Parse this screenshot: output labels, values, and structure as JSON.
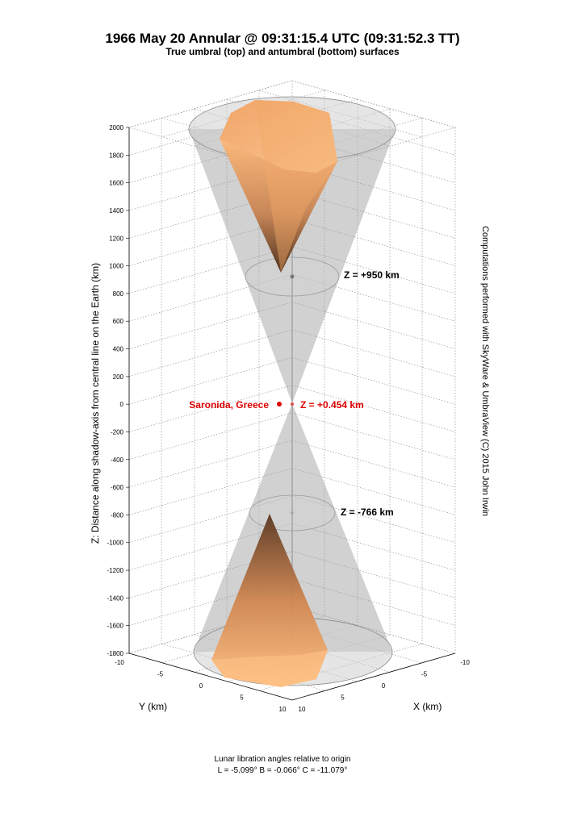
{
  "title": "1966 May 20 Annular @ 09:31:15.4 UTC (09:31:52.3 TT)",
  "subtitle": "True umbral (top) and antumbral (bottom) surfaces",
  "side_note": "Computations performed with SkyWare & UmbraView (C) 2015 John Irwin",
  "footer": {
    "line1": "Lunar libration angles relative to origin",
    "line2": "L = -5.099°  B = -0.066°  C = -11.079°"
  },
  "chart_data": {
    "type": "3d-surface",
    "title": "1966 May 20 Annular @ 09:31:15.4 UTC (09:31:52.3 TT)",
    "subtitle": "True umbral (top) and antumbral (bottom) surfaces",
    "zlabel": "Z: Distance along shadow-axis from central line on the Earth (km)",
    "xlabel": "X (km)",
    "ylabel": "Y (km)",
    "zlim": [
      -1800,
      2000
    ],
    "xlim": [
      -10,
      10
    ],
    "ylim": [
      -10,
      10
    ],
    "z_ticks": [
      "2000",
      "1800",
      "1600",
      "1400",
      "1200",
      "1000",
      "800",
      "600",
      "400",
      "200",
      "0",
      "-200",
      "-400",
      "-600",
      "-800",
      "-1000",
      "-1200",
      "-1400",
      "-1600",
      "-1800"
    ],
    "z_tick_values": [
      2000,
      1800,
      1600,
      1400,
      1200,
      1000,
      800,
      600,
      400,
      200,
      0,
      -200,
      -400,
      -600,
      -800,
      -1000,
      -1200,
      -1400,
      -1600,
      -1800
    ],
    "x_ticks": [
      "-10",
      "-5",
      "0",
      "5",
      "10"
    ],
    "x_tick_values": [
      -10,
      -5,
      0,
      5,
      10
    ],
    "y_ticks": [
      "-10",
      "-5",
      "0",
      "5",
      "10"
    ],
    "y_tick_values": [
      -10,
      -5,
      0,
      5,
      10
    ],
    "grid": true,
    "annotations": [
      {
        "label": "Z = +950 km",
        "z": 950,
        "color": "#000000"
      },
      {
        "label": "Z = +0.454 km",
        "z": 0.454,
        "color": "#dd0000"
      },
      {
        "label": "Z = -766 km",
        "z": -766,
        "color": "#000000"
      }
    ],
    "location": {
      "label": "Saronida, Greece",
      "z": 0,
      "color": "#dd0000"
    },
    "surfaces": [
      {
        "name": "True umbral",
        "z_vertex": 950,
        "z_top": 2000
      },
      {
        "name": "Antumbral",
        "z_vertex": -766,
        "z_bottom": -1800
      }
    ]
  }
}
